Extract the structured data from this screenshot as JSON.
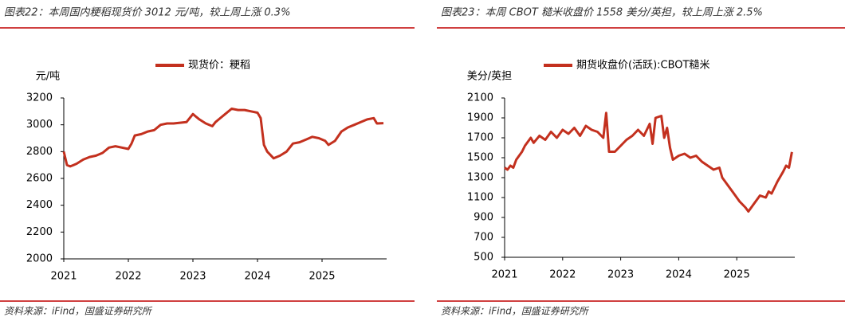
{
  "chart_data": [
    {
      "type": "line",
      "title": "图表22：本周国内粳稻现货价 3012 元/吨，较上周上涨 0.3%",
      "y_label": "元/吨",
      "source": "资料来源：iFind，国盛证券研究所",
      "x": [
        2021.0,
        2021.05,
        2021.1,
        2021.15,
        2021.2,
        2021.3,
        2021.4,
        2021.5,
        2021.6,
        2021.7,
        2021.8,
        2021.9,
        2022.0,
        2022.05,
        2022.1,
        2022.2,
        2022.3,
        2022.4,
        2022.5,
        2022.6,
        2022.7,
        2022.8,
        2022.9,
        2023.0,
        2023.05,
        2023.1,
        2023.2,
        2023.3,
        2023.35,
        2023.4,
        2023.5,
        2023.6,
        2023.7,
        2023.8,
        2023.9,
        2024.0,
        2024.05,
        2024.1,
        2024.15,
        2024.25,
        2024.35,
        2024.45,
        2024.55,
        2024.65,
        2024.75,
        2024.85,
        2024.95,
        2025.05,
        2025.1,
        2025.2,
        2025.3,
        2025.4,
        2025.5,
        2025.6,
        2025.7,
        2025.8,
        2025.85,
        2025.95
      ],
      "series": [
        {
          "name": "现货价：粳稻",
          "color": "#c3301e",
          "values": [
            2800,
            2700,
            2690,
            2700,
            2710,
            2740,
            2760,
            2770,
            2790,
            2830,
            2840,
            2830,
            2820,
            2860,
            2920,
            2930,
            2950,
            2960,
            3000,
            3010,
            3010,
            3015,
            3020,
            3080,
            3060,
            3040,
            3010,
            2990,
            3020,
            3040,
            3080,
            3120,
            3110,
            3110,
            3100,
            3090,
            3050,
            2850,
            2800,
            2750,
            2770,
            2800,
            2860,
            2870,
            2890,
            2910,
            2900,
            2880,
            2850,
            2880,
            2950,
            2980,
            3000,
            3020,
            3040,
            3050,
            3010,
            3012
          ]
        }
      ],
      "xlim": [
        2021,
        2026
      ],
      "xticks": [
        2021,
        2022,
        2023,
        2024,
        2025
      ],
      "ylim": [
        2000,
        3200
      ],
      "yticks": [
        2000,
        2200,
        2400,
        2600,
        2800,
        3000,
        3200
      ]
    },
    {
      "type": "line",
      "title": "图表23：本周 CBOT 糙米收盘价 1558 美分/英担，较上周上涨 2.5%",
      "y_label": "美分/英担",
      "source": "资料来源：iFind，国盛证券研究所",
      "x": [
        2021.0,
        2021.05,
        2021.1,
        2021.15,
        2021.2,
        2021.3,
        2021.35,
        2021.45,
        2021.5,
        2021.6,
        2021.7,
        2021.8,
        2021.9,
        2022.0,
        2022.1,
        2022.2,
        2022.3,
        2022.4,
        2022.5,
        2022.6,
        2022.7,
        2022.75,
        2022.8,
        2022.9,
        2023.0,
        2023.1,
        2023.2,
        2023.3,
        2023.4,
        2023.5,
        2023.55,
        2023.6,
        2023.7,
        2023.75,
        2023.8,
        2023.85,
        2023.9,
        2024.0,
        2024.1,
        2024.2,
        2024.3,
        2024.4,
        2024.5,
        2024.6,
        2024.7,
        2024.75,
        2024.85,
        2024.95,
        2025.05,
        2025.15,
        2025.2,
        2025.3,
        2025.4,
        2025.5,
        2025.55,
        2025.6,
        2025.7,
        2025.8,
        2025.85,
        2025.9,
        2025.95
      ],
      "series": [
        {
          "name": "期货收盘价(活跃):CBOT糙米",
          "color": "#c3301e",
          "values": [
            1400,
            1380,
            1420,
            1400,
            1480,
            1560,
            1620,
            1700,
            1650,
            1720,
            1680,
            1760,
            1700,
            1780,
            1740,
            1800,
            1720,
            1820,
            1780,
            1760,
            1700,
            1950,
            1560,
            1560,
            1620,
            1680,
            1720,
            1780,
            1720,
            1840,
            1640,
            1900,
            1920,
            1700,
            1800,
            1600,
            1480,
            1520,
            1540,
            1500,
            1520,
            1460,
            1420,
            1380,
            1400,
            1300,
            1220,
            1140,
            1060,
            1000,
            960,
            1040,
            1120,
            1100,
            1160,
            1140,
            1260,
            1360,
            1420,
            1400,
            1558
          ]
        }
      ],
      "xlim": [
        2021,
        2026
      ],
      "xticks": [
        2021,
        2022,
        2023,
        2024,
        2025
      ],
      "ylim": [
        500,
        2100
      ],
      "yticks": [
        500,
        700,
        900,
        1100,
        1300,
        1500,
        1700,
        1900,
        2100
      ]
    }
  ]
}
